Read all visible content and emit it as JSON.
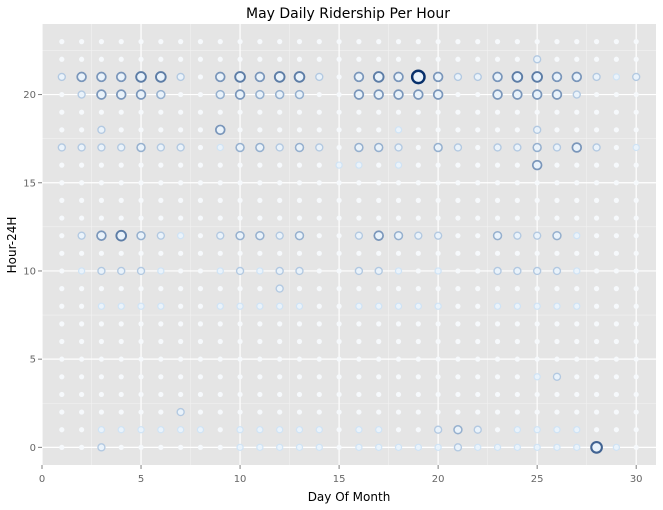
{
  "chart_data": {
    "type": "scatter",
    "title": "May Daily Ridership Per Hour",
    "xlabel": "Day Of Month",
    "ylabel": "Hour-24H",
    "xlim": [
      0,
      31
    ],
    "ylim": [
      -1,
      24
    ],
    "xticks": [
      0,
      5,
      10,
      15,
      20,
      25,
      30
    ],
    "yticks": [
      0,
      5,
      10,
      15,
      20
    ],
    "grid": true,
    "size_encoding": "ridership count (larger, darker circle = more riders)",
    "base_level": 0,
    "colors": {
      "panel_background": "#e5e5e5",
      "grid_major": "#ffffff",
      "point_fill": "#eaf3fb",
      "point_stroke_light": "#cfe3f5",
      "point_stroke_dark": "#08306b"
    },
    "points": [
      {
        "x": 1,
        "y": 21,
        "v": 3
      },
      {
        "x": 2,
        "y": 21,
        "v": 5
      },
      {
        "x": 3,
        "y": 21,
        "v": 5
      },
      {
        "x": 4,
        "y": 21,
        "v": 5
      },
      {
        "x": 5,
        "y": 21,
        "v": 6
      },
      {
        "x": 6,
        "y": 21,
        "v": 6
      },
      {
        "x": 7,
        "y": 21,
        "v": 3
      },
      {
        "x": 9,
        "y": 21,
        "v": 5
      },
      {
        "x": 10,
        "y": 21,
        "v": 6
      },
      {
        "x": 11,
        "y": 21,
        "v": 5
      },
      {
        "x": 12,
        "y": 21,
        "v": 6
      },
      {
        "x": 13,
        "y": 21,
        "v": 6
      },
      {
        "x": 14,
        "y": 21,
        "v": 3
      },
      {
        "x": 16,
        "y": 21,
        "v": 5
      },
      {
        "x": 17,
        "y": 21,
        "v": 6
      },
      {
        "x": 18,
        "y": 21,
        "v": 5
      },
      {
        "x": 19,
        "y": 21,
        "v": 9
      },
      {
        "x": 20,
        "y": 21,
        "v": 5
      },
      {
        "x": 21,
        "y": 21,
        "v": 3
      },
      {
        "x": 22,
        "y": 21,
        "v": 3
      },
      {
        "x": 23,
        "y": 21,
        "v": 5
      },
      {
        "x": 24,
        "y": 21,
        "v": 6
      },
      {
        "x": 25,
        "y": 21,
        "v": 6
      },
      {
        "x": 26,
        "y": 21,
        "v": 5
      },
      {
        "x": 27,
        "y": 21,
        "v": 5
      },
      {
        "x": 28,
        "y": 21,
        "v": 3
      },
      {
        "x": 29,
        "y": 21,
        "v": 2
      },
      {
        "x": 30,
        "y": 21,
        "v": 3
      },
      {
        "x": 25,
        "y": 22,
        "v": 3
      },
      {
        "x": 2,
        "y": 20,
        "v": 3
      },
      {
        "x": 3,
        "y": 20,
        "v": 5
      },
      {
        "x": 4,
        "y": 20,
        "v": 5
      },
      {
        "x": 5,
        "y": 20,
        "v": 5
      },
      {
        "x": 6,
        "y": 20,
        "v": 4
      },
      {
        "x": 9,
        "y": 20,
        "v": 4
      },
      {
        "x": 10,
        "y": 20,
        "v": 5
      },
      {
        "x": 11,
        "y": 20,
        "v": 4
      },
      {
        "x": 12,
        "y": 20,
        "v": 4
      },
      {
        "x": 13,
        "y": 20,
        "v": 4
      },
      {
        "x": 16,
        "y": 20,
        "v": 5
      },
      {
        "x": 17,
        "y": 20,
        "v": 5
      },
      {
        "x": 18,
        "y": 20,
        "v": 5
      },
      {
        "x": 19,
        "y": 20,
        "v": 5
      },
      {
        "x": 20,
        "y": 20,
        "v": 5
      },
      {
        "x": 23,
        "y": 20,
        "v": 5
      },
      {
        "x": 24,
        "y": 20,
        "v": 5
      },
      {
        "x": 25,
        "y": 20,
        "v": 5
      },
      {
        "x": 26,
        "y": 20,
        "v": 5
      },
      {
        "x": 27,
        "y": 20,
        "v": 3
      },
      {
        "x": 3,
        "y": 18,
        "v": 3
      },
      {
        "x": 9,
        "y": 18,
        "v": 5
      },
      {
        "x": 18,
        "y": 18,
        "v": 2
      },
      {
        "x": 25,
        "y": 18,
        "v": 3
      },
      {
        "x": 1,
        "y": 17,
        "v": 3
      },
      {
        "x": 2,
        "y": 17,
        "v": 3
      },
      {
        "x": 3,
        "y": 17,
        "v": 3
      },
      {
        "x": 4,
        "y": 17,
        "v": 3
      },
      {
        "x": 5,
        "y": 17,
        "v": 4
      },
      {
        "x": 6,
        "y": 17,
        "v": 3
      },
      {
        "x": 7,
        "y": 17,
        "v": 3
      },
      {
        "x": 9,
        "y": 17,
        "v": 2
      },
      {
        "x": 10,
        "y": 17,
        "v": 4
      },
      {
        "x": 11,
        "y": 17,
        "v": 4
      },
      {
        "x": 12,
        "y": 17,
        "v": 3
      },
      {
        "x": 13,
        "y": 17,
        "v": 4
      },
      {
        "x": 14,
        "y": 17,
        "v": 3
      },
      {
        "x": 16,
        "y": 17,
        "v": 4
      },
      {
        "x": 17,
        "y": 17,
        "v": 4
      },
      {
        "x": 18,
        "y": 17,
        "v": 3
      },
      {
        "x": 20,
        "y": 17,
        "v": 4
      },
      {
        "x": 21,
        "y": 17,
        "v": 3
      },
      {
        "x": 23,
        "y": 17,
        "v": 3
      },
      {
        "x": 24,
        "y": 17,
        "v": 3
      },
      {
        "x": 25,
        "y": 17,
        "v": 4
      },
      {
        "x": 26,
        "y": 17,
        "v": 3
      },
      {
        "x": 27,
        "y": 17,
        "v": 5
      },
      {
        "x": 28,
        "y": 17,
        "v": 3
      },
      {
        "x": 30,
        "y": 17,
        "v": 2
      },
      {
        "x": 15,
        "y": 16,
        "v": 2
      },
      {
        "x": 16,
        "y": 16,
        "v": 2
      },
      {
        "x": 18,
        "y": 16,
        "v": 2
      },
      {
        "x": 25,
        "y": 16,
        "v": 5
      },
      {
        "x": 2,
        "y": 12,
        "v": 3
      },
      {
        "x": 3,
        "y": 12,
        "v": 5
      },
      {
        "x": 4,
        "y": 12,
        "v": 6
      },
      {
        "x": 5,
        "y": 12,
        "v": 4
      },
      {
        "x": 6,
        "y": 12,
        "v": 3
      },
      {
        "x": 7,
        "y": 12,
        "v": 2
      },
      {
        "x": 9,
        "y": 12,
        "v": 3
      },
      {
        "x": 10,
        "y": 12,
        "v": 4
      },
      {
        "x": 11,
        "y": 12,
        "v": 4
      },
      {
        "x": 12,
        "y": 12,
        "v": 3
      },
      {
        "x": 13,
        "y": 12,
        "v": 4
      },
      {
        "x": 16,
        "y": 12,
        "v": 3
      },
      {
        "x": 17,
        "y": 12,
        "v": 5
      },
      {
        "x": 18,
        "y": 12,
        "v": 4
      },
      {
        "x": 19,
        "y": 12,
        "v": 3
      },
      {
        "x": 20,
        "y": 12,
        "v": 3
      },
      {
        "x": 23,
        "y": 12,
        "v": 4
      },
      {
        "x": 24,
        "y": 12,
        "v": 3
      },
      {
        "x": 25,
        "y": 12,
        "v": 3
      },
      {
        "x": 26,
        "y": 12,
        "v": 4
      },
      {
        "x": 27,
        "y": 12,
        "v": 2
      },
      {
        "x": 2,
        "y": 10,
        "v": 2
      },
      {
        "x": 3,
        "y": 10,
        "v": 3
      },
      {
        "x": 4,
        "y": 10,
        "v": 3
      },
      {
        "x": 5,
        "y": 10,
        "v": 3
      },
      {
        "x": 6,
        "y": 10,
        "v": 2
      },
      {
        "x": 9,
        "y": 10,
        "v": 2
      },
      {
        "x": 10,
        "y": 10,
        "v": 3
      },
      {
        "x": 11,
        "y": 10,
        "v": 2
      },
      {
        "x": 12,
        "y": 10,
        "v": 3
      },
      {
        "x": 13,
        "y": 10,
        "v": 3
      },
      {
        "x": 16,
        "y": 10,
        "v": 3
      },
      {
        "x": 17,
        "y": 10,
        "v": 3
      },
      {
        "x": 18,
        "y": 10,
        "v": 2
      },
      {
        "x": 20,
        "y": 10,
        "v": 2
      },
      {
        "x": 23,
        "y": 10,
        "v": 3
      },
      {
        "x": 24,
        "y": 10,
        "v": 3
      },
      {
        "x": 25,
        "y": 10,
        "v": 3
      },
      {
        "x": 26,
        "y": 10,
        "v": 3
      },
      {
        "x": 27,
        "y": 10,
        "v": 2
      },
      {
        "x": 12,
        "y": 9,
        "v": 3
      },
      {
        "x": 3,
        "y": 8,
        "v": 2
      },
      {
        "x": 4,
        "y": 8,
        "v": 2
      },
      {
        "x": 5,
        "y": 8,
        "v": 2
      },
      {
        "x": 6,
        "y": 8,
        "v": 2
      },
      {
        "x": 9,
        "y": 8,
        "v": 2
      },
      {
        "x": 10,
        "y": 8,
        "v": 2
      },
      {
        "x": 11,
        "y": 8,
        "v": 2
      },
      {
        "x": 12,
        "y": 8,
        "v": 2
      },
      {
        "x": 13,
        "y": 8,
        "v": 2
      },
      {
        "x": 16,
        "y": 8,
        "v": 2
      },
      {
        "x": 17,
        "y": 8,
        "v": 2
      },
      {
        "x": 18,
        "y": 8,
        "v": 2
      },
      {
        "x": 19,
        "y": 8,
        "v": 2
      },
      {
        "x": 20,
        "y": 8,
        "v": 2
      },
      {
        "x": 23,
        "y": 8,
        "v": 2
      },
      {
        "x": 24,
        "y": 8,
        "v": 2
      },
      {
        "x": 25,
        "y": 8,
        "v": 2
      },
      {
        "x": 26,
        "y": 8,
        "v": 2
      },
      {
        "x": 27,
        "y": 8,
        "v": 2
      },
      {
        "x": 25,
        "y": 4,
        "v": 2
      },
      {
        "x": 26,
        "y": 4,
        "v": 3
      },
      {
        "x": 7,
        "y": 2,
        "v": 3
      },
      {
        "x": 3,
        "y": 1,
        "v": 2
      },
      {
        "x": 4,
        "y": 1,
        "v": 2
      },
      {
        "x": 5,
        "y": 1,
        "v": 2
      },
      {
        "x": 6,
        "y": 1,
        "v": 2
      },
      {
        "x": 7,
        "y": 1,
        "v": 2
      },
      {
        "x": 8,
        "y": 1,
        "v": 2
      },
      {
        "x": 10,
        "y": 1,
        "v": 2
      },
      {
        "x": 11,
        "y": 1,
        "v": 2
      },
      {
        "x": 12,
        "y": 1,
        "v": 2
      },
      {
        "x": 13,
        "y": 1,
        "v": 2
      },
      {
        "x": 14,
        "y": 1,
        "v": 2
      },
      {
        "x": 16,
        "y": 1,
        "v": 2
      },
      {
        "x": 17,
        "y": 1,
        "v": 2
      },
      {
        "x": 20,
        "y": 1,
        "v": 3
      },
      {
        "x": 21,
        "y": 1,
        "v": 4
      },
      {
        "x": 22,
        "y": 1,
        "v": 3
      },
      {
        "x": 24,
        "y": 1,
        "v": 2
      },
      {
        "x": 25,
        "y": 1,
        "v": 2
      },
      {
        "x": 26,
        "y": 1,
        "v": 2
      },
      {
        "x": 27,
        "y": 1,
        "v": 2
      },
      {
        "x": 3,
        "y": 0,
        "v": 3
      },
      {
        "x": 10,
        "y": 0,
        "v": 2
      },
      {
        "x": 11,
        "y": 0,
        "v": 2
      },
      {
        "x": 12,
        "y": 0,
        "v": 2
      },
      {
        "x": 13,
        "y": 0,
        "v": 2
      },
      {
        "x": 14,
        "y": 0,
        "v": 2
      },
      {
        "x": 16,
        "y": 0,
        "v": 2
      },
      {
        "x": 17,
        "y": 0,
        "v": 2
      },
      {
        "x": 18,
        "y": 0,
        "v": 2
      },
      {
        "x": 19,
        "y": 0,
        "v": 2
      },
      {
        "x": 20,
        "y": 0,
        "v": 2
      },
      {
        "x": 21,
        "y": 0,
        "v": 3
      },
      {
        "x": 22,
        "y": 0,
        "v": 2
      },
      {
        "x": 23,
        "y": 0,
        "v": 2
      },
      {
        "x": 24,
        "y": 0,
        "v": 2
      },
      {
        "x": 25,
        "y": 0,
        "v": 2
      },
      {
        "x": 26,
        "y": 0,
        "v": 2
      },
      {
        "x": 27,
        "y": 0,
        "v": 2
      },
      {
        "x": 28,
        "y": 0,
        "v": 7
      },
      {
        "x": 29,
        "y": 0,
        "v": 2
      }
    ]
  }
}
